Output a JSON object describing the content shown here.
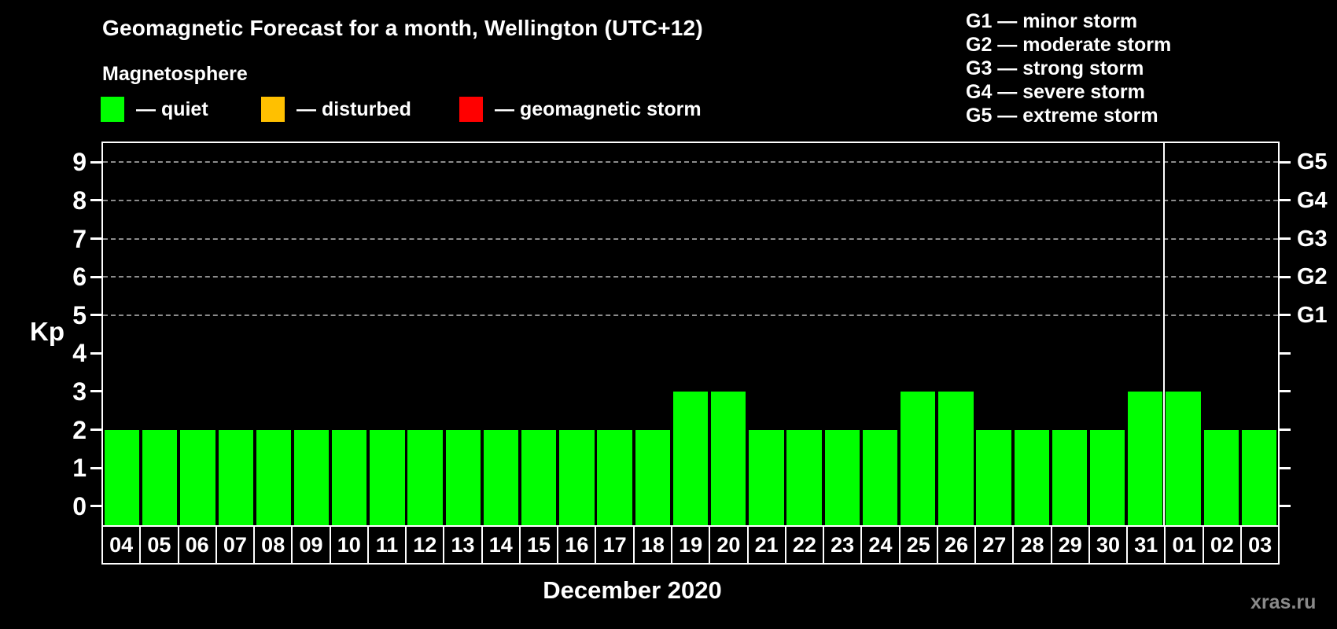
{
  "title": "Geomagnetic Forecast for a month, Wellington (UTC+12)",
  "subtitle": "Magnetosphere",
  "legend": {
    "items": [
      {
        "name": "quiet",
        "label": "— quiet",
        "color": "#00ff00"
      },
      {
        "name": "disturbed",
        "label": "— disturbed",
        "color": "#ffc000"
      },
      {
        "name": "geomagnetic-storm",
        "label": "— geomagnetic storm",
        "color": "#ff0000"
      }
    ]
  },
  "storm_scale_legend": {
    "g1": "G1 — minor storm",
    "g2": "G2 — moderate storm",
    "g3": "G3 — strong storm",
    "g4": "G4 — severe storm",
    "g5": "G5 — extreme storm"
  },
  "watermark": "xras.ru",
  "chart_data": {
    "type": "bar",
    "title": "Geomagnetic Forecast for a month, Wellington (UTC+12)",
    "xlabel": "December 2020",
    "ylabel": "Kp",
    "ylim": [
      -0.5,
      9.5
    ],
    "yticks": [
      0,
      1,
      2,
      3,
      4,
      5,
      6,
      7,
      8,
      9
    ],
    "gridlines_at": [
      5,
      6,
      7,
      8,
      9
    ],
    "grid_color": "#8c8c8c",
    "right_axis_labels": [
      {
        "label": "G1",
        "kp": 5
      },
      {
        "label": "G2",
        "kp": 6
      },
      {
        "label": "G3",
        "kp": 7
      },
      {
        "label": "G4",
        "kp": 8
      },
      {
        "label": "G5",
        "kp": 9
      }
    ],
    "categories": [
      "04",
      "05",
      "06",
      "07",
      "08",
      "09",
      "10",
      "11",
      "12",
      "13",
      "14",
      "15",
      "16",
      "17",
      "18",
      "19",
      "20",
      "21",
      "22",
      "23",
      "24",
      "25",
      "26",
      "27",
      "28",
      "29",
      "30",
      "31",
      "01",
      "02",
      "03"
    ],
    "values": [
      2,
      2,
      2,
      2,
      2,
      2,
      2,
      2,
      2,
      2,
      2,
      2,
      2,
      2,
      2,
      3,
      3,
      2,
      2,
      2,
      2,
      3,
      3,
      2,
      2,
      2,
      2,
      3,
      3,
      2,
      2
    ],
    "color_rules": [
      {
        "max_kp": 3,
        "color": "#00ff00"
      },
      {
        "max_kp": 4,
        "color": "#ffc000"
      },
      {
        "max_kp": 9,
        "color": "#ff0000"
      }
    ],
    "month_divider_after_index": 27,
    "legend_position": "top-left",
    "axis_color": "#ffffff",
    "background_color": "#000000"
  }
}
